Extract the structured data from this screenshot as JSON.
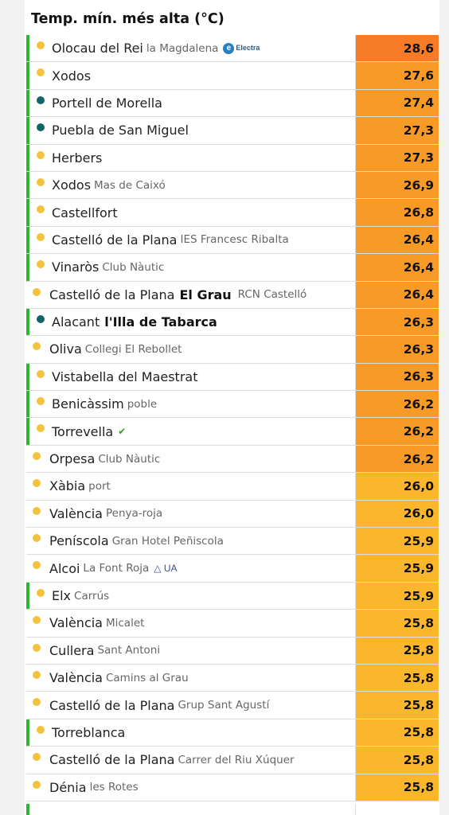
{
  "title": "Temp. mín. més alta (°C)",
  "colors": {
    "hot": "#f77a26",
    "warm": "#f89a26",
    "mild": "#fbb72c",
    "highlight_border": "#2fb536",
    "sun_dot": "#f5c23e",
    "teal_dot": "#13636a"
  },
  "rows": [
    {
      "name": "Olocau del Rei",
      "sub": "la Magdalena",
      "logo": "Electra",
      "value": "28,6",
      "green": true,
      "dot": "sun",
      "color": "hot"
    },
    {
      "name": "Xodos",
      "sub": "",
      "value": "27,6",
      "green": true,
      "dot": "sun",
      "color": "warm"
    },
    {
      "name": "Portell de Morella",
      "sub": "",
      "value": "27,4",
      "green": true,
      "dot": "teal",
      "color": "warm"
    },
    {
      "name": "Puebla de San Miguel",
      "sub": "",
      "value": "27,3",
      "green": true,
      "dot": "teal",
      "color": "warm"
    },
    {
      "name": "Herbers",
      "sub": "",
      "value": "27,3",
      "green": true,
      "dot": "sun",
      "color": "warm"
    },
    {
      "name": "Xodos",
      "sub": "Mas de Caixó",
      "value": "26,9",
      "green": true,
      "dot": "sun",
      "color": "warm"
    },
    {
      "name": "Castellfort",
      "sub": "",
      "value": "26,8",
      "green": true,
      "dot": "sun",
      "color": "warm"
    },
    {
      "name": "Castelló de la Plana",
      "sub": "IES Francesc Ribalta",
      "value": "26,4",
      "green": true,
      "dot": "sun",
      "color": "warm"
    },
    {
      "name": "Vinaròs",
      "sub": "Club Nàutic",
      "value": "26,4",
      "green": true,
      "dot": "sun",
      "color": "warm"
    },
    {
      "name": "Castelló de la Plana",
      "bold": "El Grau",
      "sub": "RCN Castelló",
      "value": "26,4",
      "green": false,
      "dot": "sun",
      "color": "warm"
    },
    {
      "name": "Alacant",
      "bold": "l'Illa de Tabarca",
      "sub": "",
      "value": "26,3",
      "green": true,
      "dot": "teal",
      "color": "warm"
    },
    {
      "name": "Oliva",
      "sub": "Collegi El Rebollet",
      "value": "26,3",
      "green": false,
      "dot": "sun",
      "color": "warm"
    },
    {
      "name": "Vistabella del Maestrat",
      "sub": "",
      "value": "26,3",
      "green": true,
      "dot": "sun",
      "color": "warm"
    },
    {
      "name": "Benicàssim",
      "sub": "poble",
      "value": "26,2",
      "green": true,
      "dot": "sun",
      "color": "warm"
    },
    {
      "name": "Torrevella",
      "sub": "",
      "logo": "check",
      "value": "26,2",
      "green": true,
      "dot": "sun",
      "color": "warm"
    },
    {
      "name": "Orpesa",
      "sub": "Club Nàutic",
      "value": "26,2",
      "green": false,
      "dot": "sun",
      "color": "warm"
    },
    {
      "name": "Xàbia",
      "sub": "port",
      "value": "26,0",
      "green": false,
      "dot": "sun",
      "color": "mild"
    },
    {
      "name": "València",
      "sub": "Penya-roja",
      "value": "26,0",
      "green": false,
      "dot": "sun",
      "color": "mild"
    },
    {
      "name": "Peníscola",
      "sub": "Gran Hotel Peñiscola",
      "value": "25,9",
      "green": false,
      "dot": "sun",
      "color": "mild"
    },
    {
      "name": "Alcoi",
      "sub": "La Font Roja",
      "logo": "UA",
      "value": "25,9",
      "green": false,
      "dot": "sun",
      "color": "mild"
    },
    {
      "name": "Elx",
      "sub": "Carrús",
      "value": "25,9",
      "green": true,
      "dot": "sun",
      "color": "mild"
    },
    {
      "name": "València",
      "sub": "Micalet",
      "value": "25,8",
      "green": false,
      "dot": "sun",
      "color": "mild"
    },
    {
      "name": "Cullera",
      "sub": "Sant Antoni",
      "value": "25,8",
      "green": false,
      "dot": "sun",
      "color": "mild"
    },
    {
      "name": "València",
      "sub": "Camins al Grau",
      "value": "25,8",
      "green": false,
      "dot": "sun",
      "color": "mild"
    },
    {
      "name": "Castelló de la Plana",
      "sub": "Grup Sant Agustí",
      "value": "25,8",
      "green": false,
      "dot": "sun",
      "color": "mild"
    },
    {
      "name": "Torreblanca",
      "sub": "",
      "value": "25,8",
      "green": true,
      "dot": "sun",
      "color": "mild"
    },
    {
      "name": "Castelló de la Plana",
      "sub": "Carrer del Riu Xúquer",
      "value": "25,8",
      "green": false,
      "dot": "sun",
      "color": "mild"
    },
    {
      "name": "Dénia",
      "sub": "les Rotes",
      "value": "25,8",
      "green": false,
      "dot": "sun",
      "color": "mild"
    }
  ]
}
